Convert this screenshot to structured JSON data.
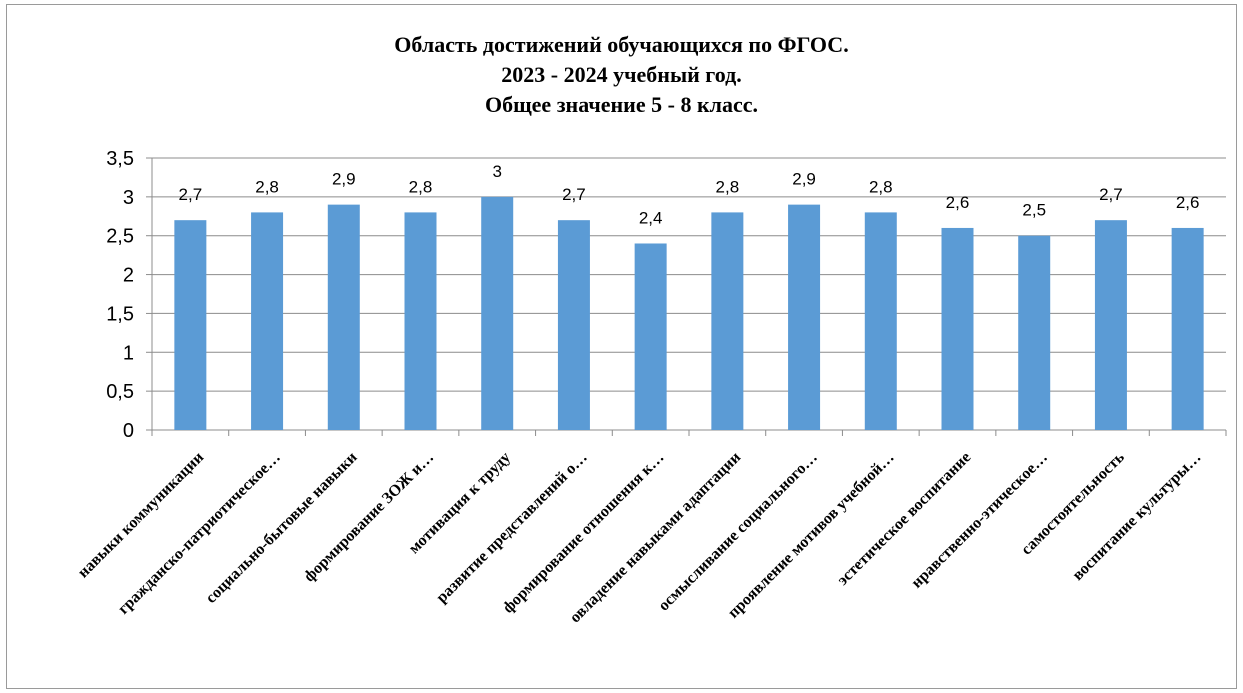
{
  "chart_data": {
    "type": "bar",
    "title_lines": [
      "Область достижений обучающихся по ФГОС.",
      "2023 - 2024 учебный год.",
      "Общее значение 5 - 8 класс."
    ],
    "categories": [
      "навыки коммуникации",
      "гражданско-патриотическое…",
      "социально-бытовые навыки",
      "формирование ЗОЖ и…",
      "мотивация к труду",
      "развитие представлений о…",
      "формирование отношения к…",
      "овладение навыками  адаптации",
      "осмысливание социального…",
      "проявление мотивов учебной…",
      "эстетическое воспитание",
      "нравственно-этическое…",
      "самостоятельность",
      "воспитание культуры…"
    ],
    "values": [
      2.7,
      2.8,
      2.9,
      2.8,
      3,
      2.7,
      2.4,
      2.8,
      2.9,
      2.8,
      2.6,
      2.5,
      2.7,
      2.6
    ],
    "value_labels": [
      "2,7",
      "2,8",
      "2,9",
      "2,8",
      "3",
      "2,7",
      "2,4",
      "2,8",
      "2,9",
      "2,8",
      "2,6",
      "2,5",
      "2,7",
      "2,6"
    ],
    "y_ticks": [
      0,
      0.5,
      1,
      1.5,
      2,
      2.5,
      3,
      3.5
    ],
    "y_tick_labels": [
      "0",
      "0,5",
      "1",
      "1,5",
      "2",
      "2,5",
      "3",
      "3,5"
    ],
    "ylim": [
      0,
      3.5
    ],
    "grid": true,
    "legend": "none",
    "bar_color": "#5b9bd5",
    "grid_color": "#8c8c8c"
  }
}
